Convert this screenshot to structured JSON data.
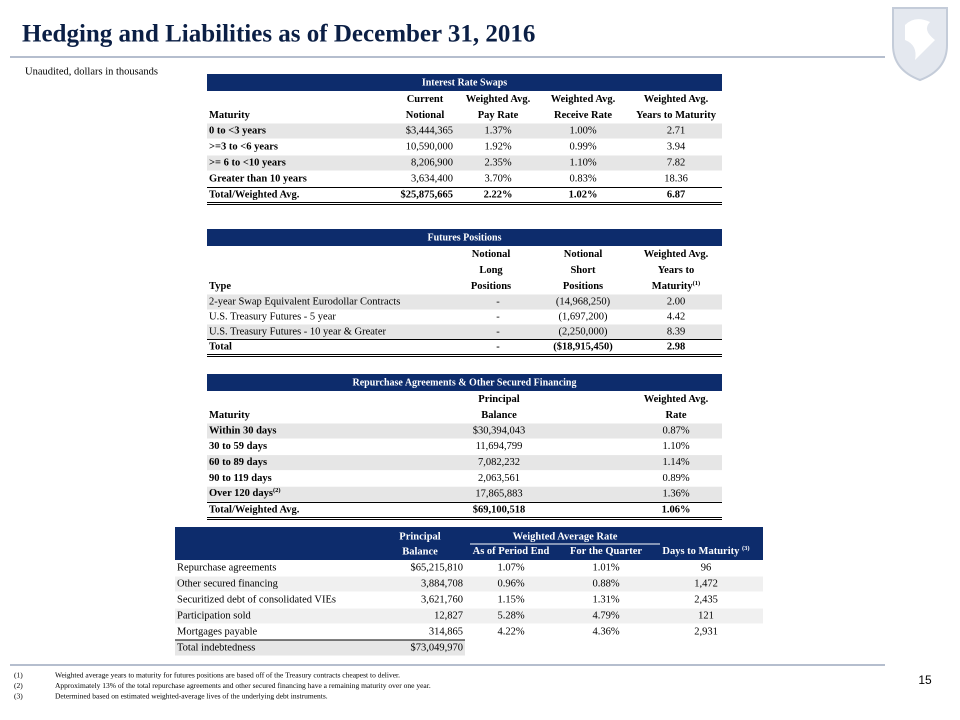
{
  "header": {
    "title": "Hedging and Liabilities as of December 31, 2016",
    "subtitle": "Unaudited, dollars in thousands",
    "page_number": "15"
  },
  "swaps": {
    "title": "Interest Rate Swaps",
    "columns": [
      {
        "lines": [
          "Maturity"
        ]
      },
      {
        "lines": [
          "Current",
          "Notional"
        ]
      },
      {
        "lines": [
          "Weighted Avg.",
          "Pay Rate"
        ]
      },
      {
        "lines": [
          "Weighted Avg.",
          "Receive Rate"
        ]
      },
      {
        "lines": [
          "Weighted Avg.",
          "Years to Maturity"
        ]
      }
    ],
    "rows": [
      [
        "0 to <3 years",
        "$3,444,365",
        "1.37%",
        "1.00%",
        "2.71"
      ],
      [
        ">=3 to <6 years",
        "10,590,000",
        "1.92%",
        "0.99%",
        "3.94"
      ],
      [
        ">= 6 to <10 years",
        "8,206,900",
        "2.35%",
        "1.10%",
        "7.82"
      ],
      [
        "Greater than 10 years",
        "3,634,400",
        "3.70%",
        "0.83%",
        "18.36"
      ]
    ],
    "total": [
      "Total/Weighted Avg.",
      "$25,875,665",
      "2.22%",
      "1.02%",
      "6.87"
    ]
  },
  "futures": {
    "title": "Futures Positions",
    "columns": [
      {
        "lines": [
          "Type"
        ]
      },
      {
        "lines": [
          "Notional",
          "Long",
          "Positions"
        ]
      },
      {
        "lines": [
          "Notional",
          "Short",
          "Positions"
        ]
      },
      {
        "lines": [
          "Weighted Avg.",
          "Years to",
          "Maturity"
        ],
        "note": "(1)"
      }
    ],
    "rows": [
      [
        "2-year Swap Equivalent Eurodollar Contracts",
        "-",
        "(14,968,250)",
        "2.00"
      ],
      [
        "U.S. Treasury Futures - 5 year",
        "-",
        "(1,697,200)",
        "4.42"
      ],
      [
        "U.S. Treasury Futures - 10 year & Greater",
        "-",
        "(2,250,000)",
        "8.39"
      ]
    ],
    "total": [
      "Total",
      "-",
      "($18,915,450)",
      "2.98"
    ]
  },
  "repo": {
    "title": "Repurchase Agreements & Other Secured Financing",
    "columns": [
      {
        "lines": [
          "Maturity"
        ]
      },
      {
        "lines": [
          "Principal",
          "Balance"
        ]
      },
      {
        "lines": [
          "Weighted Avg.",
          "Rate"
        ]
      }
    ],
    "rows": [
      [
        "Within 30 days",
        "$30,394,043",
        "0.87%"
      ],
      [
        "30 to 59 days",
        "11,694,799",
        "1.10%"
      ],
      [
        "60 to 89 days",
        "7,082,232",
        "1.14%"
      ],
      [
        "90 to 119 days",
        "2,063,561",
        "0.89%"
      ],
      [
        {
          "text": "Over 120 days",
          "note": "(2)"
        },
        "17,865,883",
        "1.36%"
      ]
    ],
    "total": [
      "Total/Weighted Avg.",
      "$69,100,518",
      "1.06%"
    ]
  },
  "liabilities": {
    "principal": [
      "Principal",
      "Balance"
    ],
    "group": "Weighted Average Rate",
    "columns": [
      {
        "text": "As of Period End"
      },
      {
        "text": "For the Quarter"
      },
      {
        "text": "Days to Maturity ",
        "note": "(3)"
      }
    ],
    "rows": [
      [
        "Repurchase agreements",
        "$65,215,810",
        "1.07%",
        "1.01%",
        "96"
      ],
      [
        "Other secured financing",
        "3,884,708",
        "0.96%",
        "0.88%",
        "1,472"
      ],
      [
        "Securitized debt of consolidated VIEs",
        "3,621,760",
        "1.15%",
        "1.31%",
        "2,435"
      ],
      [
        "Participation sold",
        "12,827",
        "5.28%",
        "4.79%",
        "121"
      ],
      [
        "Mortgages payable",
        "314,865",
        "4.22%",
        "4.36%",
        "2,931"
      ]
    ],
    "total": [
      "Total indebtedness",
      "$73,049,970"
    ]
  },
  "footnotes": [
    {
      "marker": "(1)",
      "text": "Weighted average years to maturity for futures positions are based off of the Treasury contracts cheapest to deliver."
    },
    {
      "marker": "(2)",
      "text": "Approximately 13% of the total repurchase agreements and other secured financing have a remaining maturity over one year."
    },
    {
      "marker": "(3)",
      "text": "Determined based on estimated weighted-average lives of the underlying debt instruments."
    }
  ]
}
